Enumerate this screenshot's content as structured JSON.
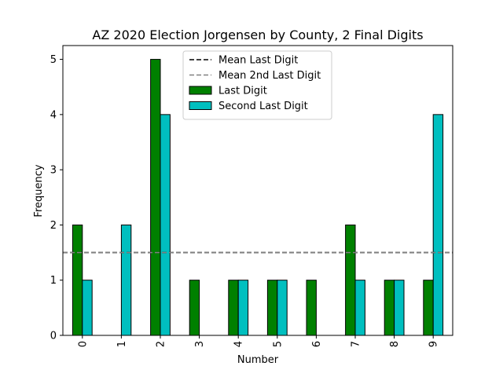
{
  "chart_data": {
    "type": "bar",
    "title": "AZ 2020 Election Jorgensen by County, 2 Final Digits",
    "xlabel": "Number",
    "ylabel": "Frequency",
    "categories": [
      "0",
      "1",
      "2",
      "3",
      "4",
      "5",
      "6",
      "7",
      "8",
      "9"
    ],
    "series": [
      {
        "name": "Last Digit",
        "color": "#008000",
        "values": [
          2,
          0,
          5,
          1,
          1,
          1,
          1,
          2,
          1,
          1
        ]
      },
      {
        "name": "Second Last Digit",
        "color": "#00bfbf",
        "values": [
          1,
          2,
          4,
          0,
          1,
          1,
          0,
          1,
          1,
          4
        ]
      }
    ],
    "reference_lines": [
      {
        "name": "Mean Last Digit",
        "value": 1.5,
        "color": "#000000",
        "style": "dashed"
      },
      {
        "name": "Mean 2nd Last Digit",
        "value": 1.5,
        "color": "#808080",
        "style": "dashed"
      }
    ],
    "ylim": [
      0,
      5.25
    ],
    "yticks": [
      "0",
      "1",
      "2",
      "3",
      "4",
      "5"
    ],
    "grid": false,
    "legend_position": "top-center"
  }
}
